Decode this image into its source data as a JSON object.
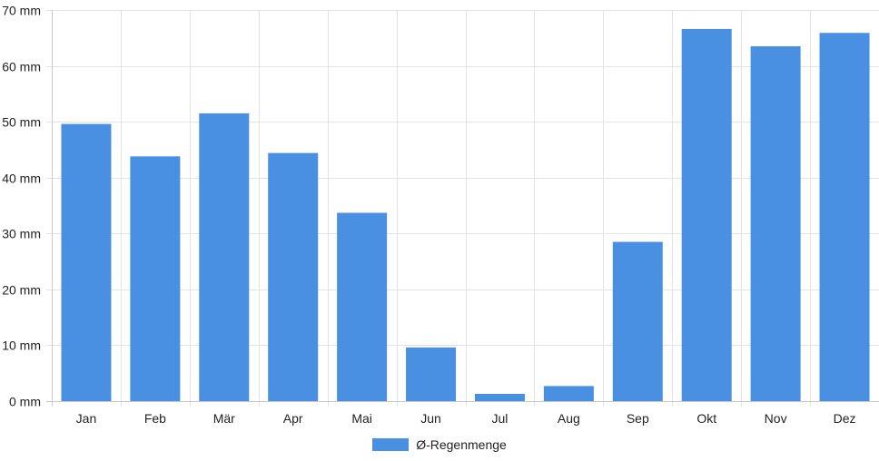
{
  "chart_data": {
    "type": "bar",
    "categories": [
      "Jan",
      "Feb",
      "Mär",
      "Apr",
      "Mai",
      "Jun",
      "Jul",
      "Aug",
      "Sep",
      "Okt",
      "Nov",
      "Dez"
    ],
    "series": [
      {
        "name": "Ø-Regenmenge",
        "values": [
          49.6,
          43.8,
          51.5,
          44.4,
          33.7,
          9.6,
          1.3,
          2.7,
          28.5,
          66.6,
          63.5,
          65.9
        ],
        "color": "#4a90e2"
      }
    ],
    "y_ticks": [
      "0 mm",
      "10 mm",
      "20 mm",
      "30 mm",
      "40 mm",
      "50 mm",
      "60 mm",
      "70 mm"
    ],
    "ylim": [
      0,
      70
    ],
    "y_unit": "mm",
    "grid": true,
    "legend_position": "bottom-center"
  }
}
